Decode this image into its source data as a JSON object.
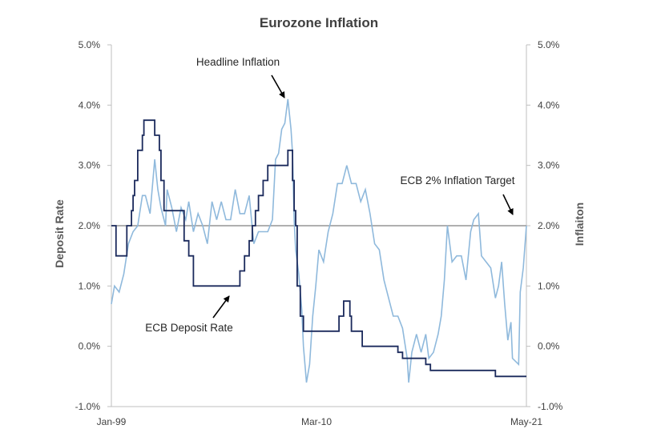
{
  "chart_data": {
    "type": "line",
    "title": "Eurozone Inflation",
    "ylabel_left": "Deposit  Rate",
    "ylabel_right": "Inflaiton",
    "x_tick_labels": [
      "Jan-99",
      "Mar-10",
      "May-21"
    ],
    "xlim": [
      "1999-01",
      "2021-05"
    ],
    "ylim": [
      -1.0,
      5.0
    ],
    "y_ticks": [
      -1.0,
      0.0,
      1.0,
      2.0,
      3.0,
      4.0,
      5.0
    ],
    "y_tick_labels": [
      "-1.0%",
      "0.0%",
      "1.0%",
      "2.0%",
      "3.0%",
      "4.0%",
      "5.0%"
    ],
    "y2_tick_labels": [
      "-1.0%",
      "0.0%",
      "1.0%",
      "2.0%",
      "3.0%",
      "4.0%",
      "5.0%"
    ],
    "grid": false,
    "colors": {
      "deposit": "#1b2a5c",
      "inflation": "#8fb9dc",
      "target": "#808080"
    },
    "series": [
      {
        "name": "ECB Deposit Rate",
        "axis": "left",
        "step": true,
        "points": [
          [
            "1999-01",
            2.0
          ],
          [
            "1999-04",
            1.5
          ],
          [
            "1999-11",
            2.0
          ],
          [
            "2000-02",
            2.25
          ],
          [
            "2000-03",
            2.5
          ],
          [
            "2000-04",
            2.75
          ],
          [
            "2000-06",
            3.25
          ],
          [
            "2000-09",
            3.5
          ],
          [
            "2000-10",
            3.75
          ],
          [
            "2001-05",
            3.5
          ],
          [
            "2001-08",
            3.25
          ],
          [
            "2001-09",
            2.75
          ],
          [
            "2001-11",
            2.25
          ],
          [
            "2002-12",
            1.75
          ],
          [
            "2003-03",
            1.5
          ],
          [
            "2003-06",
            1.0
          ],
          [
            "2005-12",
            1.25
          ],
          [
            "2006-03",
            1.5
          ],
          [
            "2006-06",
            1.75
          ],
          [
            "2006-08",
            2.0
          ],
          [
            "2006-10",
            2.25
          ],
          [
            "2006-12",
            2.5
          ],
          [
            "2007-03",
            2.75
          ],
          [
            "2007-06",
            3.0
          ],
          [
            "2008-07",
            3.25
          ],
          [
            "2008-10",
            2.75
          ],
          [
            "2008-11",
            2.25
          ],
          [
            "2008-12",
            2.0
          ],
          [
            "2009-01",
            1.0
          ],
          [
            "2009-03",
            0.5
          ],
          [
            "2009-05",
            0.25
          ],
          [
            "2011-04",
            0.5
          ],
          [
            "2011-07",
            0.75
          ],
          [
            "2011-11",
            0.5
          ],
          [
            "2011-12",
            0.25
          ],
          [
            "2012-07",
            0.0
          ],
          [
            "2014-06",
            -0.1
          ],
          [
            "2014-09",
            -0.2
          ],
          [
            "2015-12",
            -0.3
          ],
          [
            "2016-03",
            -0.4
          ],
          [
            "2019-09",
            -0.5
          ],
          [
            "2021-05",
            -0.5
          ]
        ]
      },
      {
        "name": "Headline Inflation",
        "axis": "right",
        "step": false,
        "points": [
          [
            "1999-01",
            0.7
          ],
          [
            "1999-03",
            1.0
          ],
          [
            "1999-06",
            0.9
          ],
          [
            "1999-09",
            1.2
          ],
          [
            "1999-12",
            1.7
          ],
          [
            "2000-03",
            1.9
          ],
          [
            "2000-06",
            2.0
          ],
          [
            "2000-09",
            2.5
          ],
          [
            "2000-11",
            2.5
          ],
          [
            "2001-02",
            2.2
          ],
          [
            "2001-05",
            3.1
          ],
          [
            "2001-07",
            2.6
          ],
          [
            "2001-09",
            2.3
          ],
          [
            "2001-12",
            2.0
          ],
          [
            "2002-01",
            2.6
          ],
          [
            "2002-04",
            2.3
          ],
          [
            "2002-07",
            1.9
          ],
          [
            "2002-10",
            2.3
          ],
          [
            "2003-01",
            2.1
          ],
          [
            "2003-03",
            2.4
          ],
          [
            "2003-06",
            1.9
          ],
          [
            "2003-09",
            2.2
          ],
          [
            "2003-12",
            2.0
          ],
          [
            "2004-03",
            1.7
          ],
          [
            "2004-06",
            2.4
          ],
          [
            "2004-09",
            2.1
          ],
          [
            "2004-12",
            2.4
          ],
          [
            "2005-03",
            2.1
          ],
          [
            "2005-06",
            2.1
          ],
          [
            "2005-09",
            2.6
          ],
          [
            "2005-12",
            2.2
          ],
          [
            "2006-03",
            2.2
          ],
          [
            "2006-06",
            2.5
          ],
          [
            "2006-09",
            1.7
          ],
          [
            "2006-12",
            1.9
          ],
          [
            "2007-03",
            1.9
          ],
          [
            "2007-06",
            1.9
          ],
          [
            "2007-09",
            2.1
          ],
          [
            "2007-11",
            3.1
          ],
          [
            "2008-01",
            3.2
          ],
          [
            "2008-03",
            3.6
          ],
          [
            "2008-05",
            3.7
          ],
          [
            "2008-07",
            4.1
          ],
          [
            "2008-09",
            3.6
          ],
          [
            "2008-10",
            3.2
          ],
          [
            "2008-11",
            2.1
          ],
          [
            "2008-12",
            1.6
          ],
          [
            "2009-02",
            1.2
          ],
          [
            "2009-04",
            0.6
          ],
          [
            "2009-05",
            0.0
          ],
          [
            "2009-07",
            -0.6
          ],
          [
            "2009-09",
            -0.3
          ],
          [
            "2009-11",
            0.5
          ],
          [
            "2010-01",
            1.0
          ],
          [
            "2010-03",
            1.6
          ],
          [
            "2010-06",
            1.4
          ],
          [
            "2010-09",
            1.9
          ],
          [
            "2010-12",
            2.2
          ],
          [
            "2011-03",
            2.7
          ],
          [
            "2011-06",
            2.7
          ],
          [
            "2011-09",
            3.0
          ],
          [
            "2011-12",
            2.7
          ],
          [
            "2012-03",
            2.7
          ],
          [
            "2012-06",
            2.4
          ],
          [
            "2012-09",
            2.6
          ],
          [
            "2012-12",
            2.2
          ],
          [
            "2013-03",
            1.7
          ],
          [
            "2013-06",
            1.6
          ],
          [
            "2013-09",
            1.1
          ],
          [
            "2013-12",
            0.8
          ],
          [
            "2014-03",
            0.5
          ],
          [
            "2014-06",
            0.5
          ],
          [
            "2014-09",
            0.3
          ],
          [
            "2014-12",
            -0.2
          ],
          [
            "2015-01",
            -0.6
          ],
          [
            "2015-03",
            -0.1
          ],
          [
            "2015-06",
            0.2
          ],
          [
            "2015-09",
            -0.1
          ],
          [
            "2015-12",
            0.2
          ],
          [
            "2016-02",
            -0.2
          ],
          [
            "2016-05",
            -0.1
          ],
          [
            "2016-08",
            0.2
          ],
          [
            "2016-10",
            0.5
          ],
          [
            "2016-12",
            1.1
          ],
          [
            "2017-02",
            2.0
          ],
          [
            "2017-05",
            1.4
          ],
          [
            "2017-08",
            1.5
          ],
          [
            "2017-11",
            1.5
          ],
          [
            "2018-02",
            1.1
          ],
          [
            "2018-05",
            1.9
          ],
          [
            "2018-07",
            2.1
          ],
          [
            "2018-10",
            2.2
          ],
          [
            "2018-12",
            1.5
          ],
          [
            "2019-03",
            1.4
          ],
          [
            "2019-06",
            1.3
          ],
          [
            "2019-09",
            0.8
          ],
          [
            "2019-11",
            1.0
          ],
          [
            "2020-01",
            1.4
          ],
          [
            "2020-03",
            0.7
          ],
          [
            "2020-05",
            0.1
          ],
          [
            "2020-07",
            0.4
          ],
          [
            "2020-08",
            -0.2
          ],
          [
            "2020-12",
            -0.3
          ],
          [
            "2021-01",
            0.9
          ],
          [
            "2021-03",
            1.3
          ],
          [
            "2021-05",
            2.0
          ]
        ]
      }
    ],
    "reference_line": {
      "name": "ECB 2% Inflation Target",
      "y": 2.0
    },
    "annotations": [
      {
        "text": "Headline Inflation",
        "target": [
          "2008-07",
          4.1
        ]
      },
      {
        "text": "ECB Deposit Rate",
        "target": [
          "2006-01",
          0.9
        ]
      },
      {
        "text": "ECB 2% Inflation Target",
        "target": [
          "2021-05",
          2.05
        ]
      }
    ]
  }
}
